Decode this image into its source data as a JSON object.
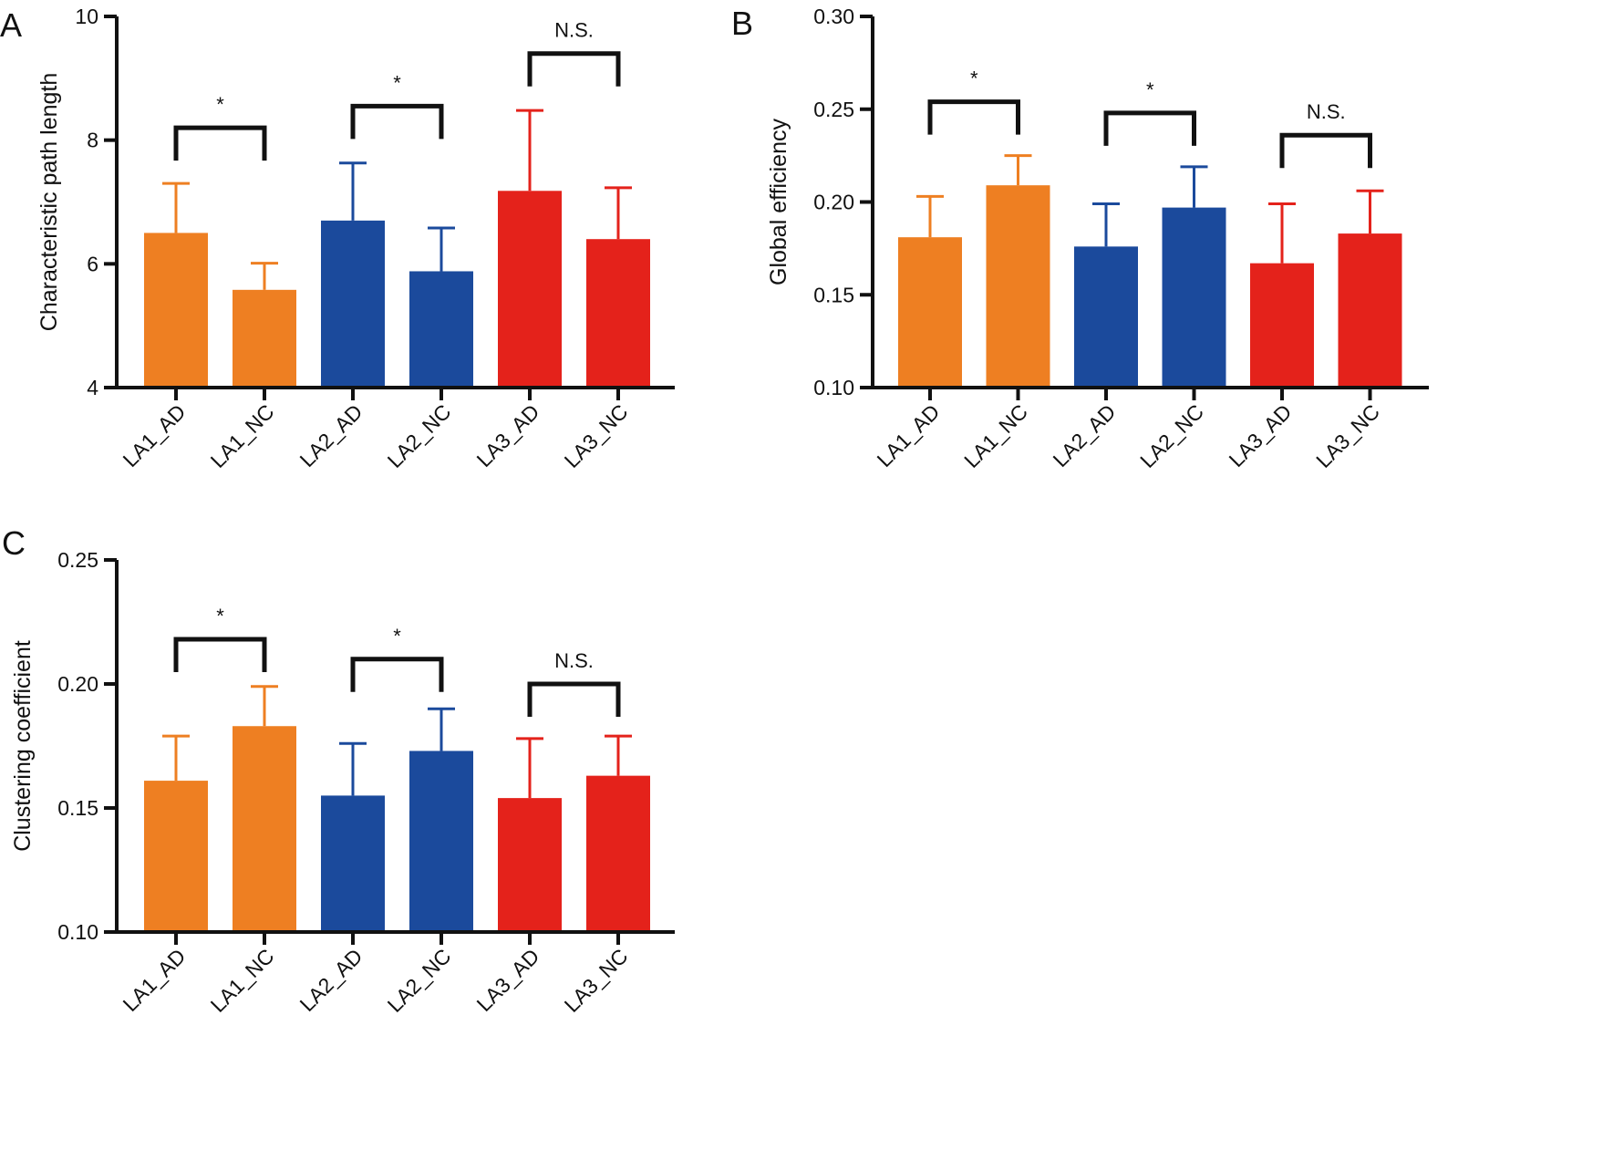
{
  "colors": {
    "orange": "#EE7F22",
    "blue": "#1B4A9C",
    "red": "#E4221B",
    "axis": "#111111"
  },
  "chart_data": [
    {
      "panel": "A",
      "type": "bar",
      "ylabel": "Characteristic path length",
      "ylim": [
        4,
        10
      ],
      "yticks": [
        "4",
        "6",
        "8",
        "10"
      ],
      "categories": [
        "LA1_AD",
        "LA1_NC",
        "LA2_AD",
        "LA2_NC",
        "LA3_AD",
        "LA3_NC"
      ],
      "values": [
        6.5,
        5.58,
        6.7,
        5.88,
        7.18,
        6.4
      ],
      "errors": [
        0.8,
        0.43,
        0.93,
        0.7,
        1.3,
        0.83
      ],
      "bar_colors": [
        "orange",
        "orange",
        "blue",
        "blue",
        "red",
        "red"
      ],
      "significance": [
        {
          "pair": [
            0,
            1
          ],
          "label": "*",
          "level": 8.2
        },
        {
          "pair": [
            2,
            3
          ],
          "label": "*",
          "level": 8.55
        },
        {
          "pair": [
            4,
            5
          ],
          "label": "N.S.",
          "level": 9.4
        }
      ]
    },
    {
      "panel": "B",
      "type": "bar",
      "ylabel": "Global efficiency",
      "ylim": [
        0.1,
        0.3
      ],
      "yticks": [
        "0.10",
        "0.15",
        "0.20",
        "0.25",
        "0.30"
      ],
      "categories": [
        "LA1_AD",
        "LA1_NC",
        "LA2_AD",
        "LA2_NC",
        "LA3_AD",
        "LA3_NC"
      ],
      "values": [
        0.181,
        0.209,
        0.176,
        0.197,
        0.167,
        0.183
      ],
      "errors": [
        0.022,
        0.016,
        0.023,
        0.022,
        0.032,
        0.023
      ],
      "bar_colors": [
        "orange",
        "orange",
        "blue",
        "blue",
        "red",
        "red"
      ],
      "significance": [
        {
          "pair": [
            0,
            1
          ],
          "label": "*",
          "level": 0.254
        },
        {
          "pair": [
            2,
            3
          ],
          "label": "*",
          "level": 0.248
        },
        {
          "pair": [
            4,
            5
          ],
          "label": "N.S.",
          "level": 0.236
        }
      ]
    },
    {
      "panel": "C",
      "type": "bar",
      "ylabel": "Clustering coefficient",
      "ylim": [
        0.1,
        0.25
      ],
      "yticks": [
        "0.10",
        "0.15",
        "0.20",
        "0.25"
      ],
      "categories": [
        "LA1_AD",
        "LA1_NC",
        "LA2_AD",
        "LA2_NC",
        "LA3_AD",
        "LA3_NC"
      ],
      "values": [
        0.161,
        0.183,
        0.155,
        0.173,
        0.154,
        0.163
      ],
      "errors": [
        0.018,
        0.016,
        0.021,
        0.017,
        0.024,
        0.016
      ],
      "bar_colors": [
        "orange",
        "orange",
        "blue",
        "blue",
        "red",
        "red"
      ],
      "significance": [
        {
          "pair": [
            0,
            1
          ],
          "label": "*",
          "level": 0.218
        },
        {
          "pair": [
            2,
            3
          ],
          "label": "*",
          "level": 0.21
        },
        {
          "pair": [
            4,
            5
          ],
          "label": "N.S.",
          "level": 0.2
        }
      ]
    }
  ]
}
